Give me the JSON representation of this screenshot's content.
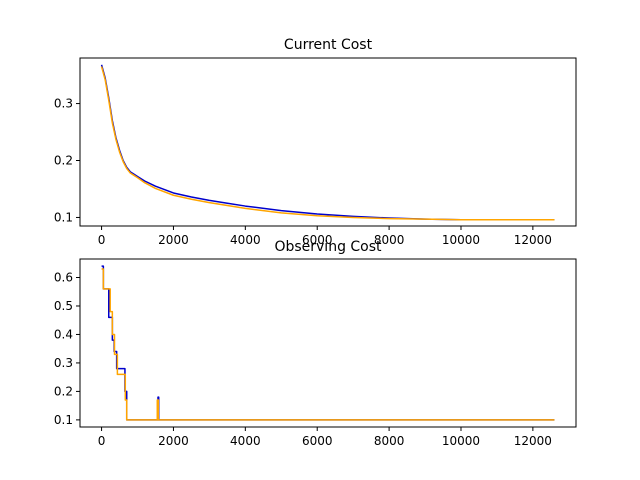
{
  "chart_data": [
    {
      "type": "line",
      "title": "Current Cost",
      "xlabel": "",
      "ylabel": "",
      "xlim": [
        -600,
        13200
      ],
      "ylim": [
        0.085,
        0.38
      ],
      "xticks": [
        0,
        2000,
        4000,
        6000,
        8000,
        10000,
        12000
      ],
      "xtick_labels": [
        "0",
        "2000",
        "4000",
        "6000",
        "8000",
        "10000",
        "12000"
      ],
      "yticks": [
        0.1,
        0.2,
        0.3
      ],
      "ytick_labels": [
        "0.1",
        "0.2",
        "0.3"
      ],
      "grid": false,
      "series": [
        {
          "color": "#0000cc",
          "x": [
            0,
            100,
            200,
            300,
            400,
            500,
            600,
            700,
            800,
            900,
            1000,
            1200,
            1500,
            2000,
            2500,
            3000,
            3500,
            4000,
            5000,
            6000,
            7000,
            8000,
            9000,
            10000,
            11000,
            12000,
            12600
          ],
          "y": [
            0.368,
            0.345,
            0.31,
            0.27,
            0.24,
            0.218,
            0.2,
            0.188,
            0.18,
            0.176,
            0.172,
            0.164,
            0.155,
            0.143,
            0.136,
            0.13,
            0.125,
            0.12,
            0.112,
            0.106,
            0.102,
            0.099,
            0.097,
            0.096,
            0.096,
            0.096,
            0.096
          ]
        },
        {
          "color": "#ffa500",
          "x": [
            0,
            100,
            200,
            300,
            400,
            500,
            600,
            700,
            800,
            900,
            1000,
            1200,
            1500,
            2000,
            2500,
            3000,
            3500,
            4000,
            5000,
            6000,
            7000,
            8000,
            9000,
            10000,
            11000,
            12000,
            12600
          ],
          "y": [
            0.365,
            0.342,
            0.306,
            0.266,
            0.237,
            0.215,
            0.198,
            0.186,
            0.178,
            0.174,
            0.17,
            0.161,
            0.151,
            0.139,
            0.132,
            0.126,
            0.121,
            0.116,
            0.108,
            0.103,
            0.1,
            0.098,
            0.097,
            0.096,
            0.096,
            0.096,
            0.096
          ]
        }
      ]
    },
    {
      "type": "line",
      "title": "Observing Cost",
      "xlabel": "",
      "ylabel": "",
      "xlim": [
        -600,
        13200
      ],
      "ylim": [
        0.075,
        0.665
      ],
      "xticks": [
        0,
        2000,
        4000,
        6000,
        8000,
        10000,
        12000
      ],
      "xtick_labels": [
        "0",
        "2000",
        "4000",
        "6000",
        "8000",
        "10000",
        "12000"
      ],
      "yticks": [
        0.1,
        0.2,
        0.3,
        0.4,
        0.5,
        0.6
      ],
      "ytick_labels": [
        "0.1",
        "0.2",
        "0.3",
        "0.4",
        "0.5",
        "0.6"
      ],
      "grid": false,
      "series": [
        {
          "color": "#0000cc",
          "step": true,
          "x": [
            0,
            50,
            50,
            200,
            200,
            300,
            300,
            350,
            350,
            420,
            420,
            520,
            520,
            650,
            650,
            700,
            700,
            1570,
            1570,
            1590,
            1590,
            12600
          ],
          "y": [
            0.64,
            0.64,
            0.56,
            0.56,
            0.46,
            0.46,
            0.38,
            0.38,
            0.34,
            0.34,
            0.28,
            0.28,
            0.28,
            0.28,
            0.2,
            0.2,
            0.1,
            0.1,
            0.18,
            0.18,
            0.1,
            0.1
          ]
        },
        {
          "color": "#ffa500",
          "step": true,
          "x": [
            0,
            50,
            50,
            240,
            240,
            300,
            300,
            360,
            360,
            440,
            440,
            600,
            600,
            660,
            660,
            700,
            700,
            1550,
            1550,
            1580,
            1580,
            12600
          ],
          "y": [
            0.63,
            0.63,
            0.56,
            0.56,
            0.48,
            0.48,
            0.4,
            0.4,
            0.33,
            0.33,
            0.26,
            0.26,
            0.26,
            0.26,
            0.17,
            0.17,
            0.1,
            0.1,
            0.17,
            0.17,
            0.1,
            0.1
          ]
        }
      ]
    }
  ]
}
